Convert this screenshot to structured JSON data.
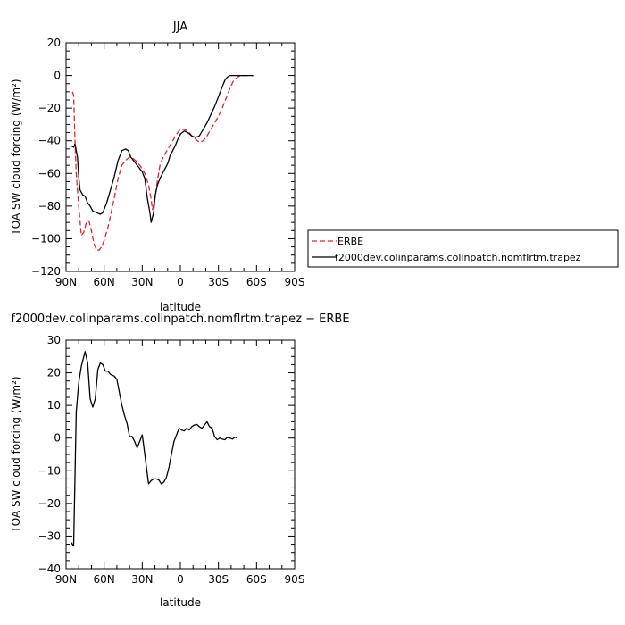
{
  "chart_data": [
    {
      "type": "line",
      "title": "JJA",
      "xlabel": "latitude",
      "ylabel": "TOA SW cloud forcing (W/m²)",
      "xlim": [
        -90,
        90
      ],
      "ylim": [
        -120,
        20
      ],
      "x_ticks": [
        {
          "value": -90,
          "label": "90N"
        },
        {
          "value": -60,
          "label": "60N"
        },
        {
          "value": -30,
          "label": "30N"
        },
        {
          "value": 0,
          "label": "0"
        },
        {
          "value": 30,
          "label": "30S"
        },
        {
          "value": 60,
          "label": "60S"
        },
        {
          "value": 90,
          "label": "90S"
        }
      ],
      "y_ticks": [
        20,
        0,
        -20,
        -40,
        -60,
        -80,
        -100,
        -120
      ],
      "legend_position": "right",
      "series": [
        {
          "name": "ERBE",
          "color": "#e8202a",
          "dash": "dashed",
          "points": [
            [
              -85,
              -10
            ],
            [
              -84,
              -12
            ],
            [
              -83,
              -40
            ],
            [
              -82,
              -60
            ],
            [
              -80,
              -80
            ],
            [
              -78,
              -98
            ],
            [
              -76,
              -96
            ],
            [
              -74,
              -90
            ],
            [
              -72,
              -89
            ],
            [
              -70,
              -95
            ],
            [
              -68,
              -103
            ],
            [
              -66,
              -107
            ],
            [
              -64,
              -107
            ],
            [
              -62,
              -105
            ],
            [
              -60,
              -101
            ],
            [
              -57,
              -93
            ],
            [
              -55,
              -86
            ],
            [
              -52,
              -75
            ],
            [
              -49,
              -63
            ],
            [
              -46,
              -55
            ],
            [
              -43,
              -52
            ],
            [
              -40,
              -50
            ],
            [
              -37,
              -51
            ],
            [
              -34,
              -53
            ],
            [
              -31,
              -56
            ],
            [
              -28,
              -60
            ],
            [
              -25,
              -67
            ],
            [
              -23,
              -76
            ],
            [
              -22,
              -82
            ],
            [
              -20,
              -76
            ],
            [
              -18,
              -64
            ],
            [
              -16,
              -55
            ],
            [
              -14,
              -51
            ],
            [
              -12,
              -48
            ],
            [
              -9,
              -44
            ],
            [
              -6,
              -40
            ],
            [
              -3,
              -36
            ],
            [
              0,
              -33
            ],
            [
              3,
              -33
            ],
            [
              6,
              -34
            ],
            [
              9,
              -37
            ],
            [
              12,
              -39
            ],
            [
              15,
              -41
            ],
            [
              18,
              -40
            ],
            [
              21,
              -37
            ],
            [
              24,
              -33
            ],
            [
              27,
              -29
            ],
            [
              30,
              -25
            ],
            [
              33,
              -20
            ],
            [
              36,
              -14
            ],
            [
              39,
              -8
            ],
            [
              42,
              -3
            ],
            [
              45,
              -1
            ],
            [
              48,
              0
            ],
            [
              51,
              0
            ],
            [
              54,
              0
            ],
            [
              58,
              0
            ]
          ]
        },
        {
          "name": "f2000dev.colinparams.colinpatch.nomflrtm.trapez",
          "color": "#000000",
          "dash": "solid",
          "points": [
            [
              -86,
              -43
            ],
            [
              -84,
              -44
            ],
            [
              -83,
              -42
            ],
            [
              -81,
              -50
            ],
            [
              -80,
              -62
            ],
            [
              -79,
              -70
            ],
            [
              -77,
              -73
            ],
            [
              -75,
              -74
            ],
            [
              -73,
              -78
            ],
            [
              -71,
              -80
            ],
            [
              -69,
              -83
            ],
            [
              -66,
              -84
            ],
            [
              -63,
              -85
            ],
            [
              -61,
              -84
            ],
            [
              -58,
              -78
            ],
            [
              -55,
              -70
            ],
            [
              -52,
              -62
            ],
            [
              -49,
              -52
            ],
            [
              -46,
              -46
            ],
            [
              -43,
              -45
            ],
            [
              -41,
              -46
            ],
            [
              -39,
              -50
            ],
            [
              -36,
              -53
            ],
            [
              -33,
              -56
            ],
            [
              -30,
              -59
            ],
            [
              -28,
              -63
            ],
            [
              -26,
              -75
            ],
            [
              -24,
              -84
            ],
            [
              -23,
              -90
            ],
            [
              -21,
              -84
            ],
            [
              -20,
              -74
            ],
            [
              -18,
              -67
            ],
            [
              -16,
              -63
            ],
            [
              -14,
              -60
            ],
            [
              -12,
              -57
            ],
            [
              -10,
              -54
            ],
            [
              -8,
              -49
            ],
            [
              -6,
              -46
            ],
            [
              -4,
              -43
            ],
            [
              -2,
              -39
            ],
            [
              0,
              -36
            ],
            [
              3,
              -34
            ],
            [
              6,
              -35
            ],
            [
              9,
              -37
            ],
            [
              12,
              -38
            ],
            [
              15,
              -37
            ],
            [
              18,
              -33
            ],
            [
              21,
              -29
            ],
            [
              24,
              -24
            ],
            [
              27,
              -19
            ],
            [
              30,
              -13
            ],
            [
              33,
              -7
            ],
            [
              35,
              -3
            ],
            [
              37,
              -1
            ],
            [
              39,
              0
            ],
            [
              42,
              0
            ],
            [
              45,
              0
            ],
            [
              50,
              0
            ],
            [
              57,
              0
            ]
          ]
        }
      ]
    },
    {
      "type": "line",
      "title": "f2000dev.colinparams.colinpatch.nomflrtm.trapez − ERBE",
      "xlabel": "latitude",
      "ylabel": "TOA SW cloud forcing (W/m²)",
      "xlim": [
        -90,
        90
      ],
      "ylim": [
        -40,
        30
      ],
      "x_ticks": [
        {
          "value": -90,
          "label": "90N"
        },
        {
          "value": -60,
          "label": "60N"
        },
        {
          "value": -30,
          "label": "30N"
        },
        {
          "value": 0,
          "label": "0"
        },
        {
          "value": 30,
          "label": "30S"
        },
        {
          "value": 60,
          "label": "60S"
        },
        {
          "value": 90,
          "label": "90S"
        }
      ],
      "y_ticks": [
        30,
        20,
        10,
        0,
        -10,
        -20,
        -30,
        -40
      ],
      "series": [
        {
          "color": "#000000",
          "dash": "solid",
          "points": [
            [
              -86,
              -32
            ],
            [
              -84,
              -33
            ],
            [
              -82,
              8
            ],
            [
              -80,
              17
            ],
            [
              -78,
              22
            ],
            [
              -75,
              26.5
            ],
            [
              -73,
              23
            ],
            [
              -71,
              12
            ],
            [
              -69,
              9.5
            ],
            [
              -67,
              12
            ],
            [
              -65,
              21
            ],
            [
              -63,
              23
            ],
            [
              -61,
              22.5
            ],
            [
              -59,
              20.5
            ],
            [
              -57,
              20.5
            ],
            [
              -55,
              19.5
            ],
            [
              -52,
              19
            ],
            [
              -50,
              18
            ],
            [
              -48,
              14
            ],
            [
              -46,
              10
            ],
            [
              -44,
              7
            ],
            [
              -42,
              4.5
            ],
            [
              -40,
              0.5
            ],
            [
              -38,
              0.5
            ],
            [
              -36,
              -1
            ],
            [
              -34,
              -3
            ],
            [
              -32,
              -1
            ],
            [
              -30,
              1
            ],
            [
              -29,
              -2
            ],
            [
              -27,
              -8
            ],
            [
              -25,
              -14
            ],
            [
              -23,
              -13
            ],
            [
              -21,
              -12.5
            ],
            [
              -19,
              -12.5
            ],
            [
              -17,
              -12.8
            ],
            [
              -15,
              -14
            ],
            [
              -13,
              -13.5
            ],
            [
              -11,
              -12
            ],
            [
              -9,
              -9
            ],
            [
              -7,
              -5
            ],
            [
              -5,
              -1
            ],
            [
              -3,
              1
            ],
            [
              -1,
              3
            ],
            [
              1,
              2.5
            ],
            [
              3,
              2.2
            ],
            [
              5,
              3
            ],
            [
              7,
              2.5
            ],
            [
              9,
              3.5
            ],
            [
              11,
              4
            ],
            [
              13,
              4.2
            ],
            [
              15,
              3.5
            ],
            [
              17,
              3
            ],
            [
              19,
              4
            ],
            [
              21,
              5
            ],
            [
              23,
              3.5
            ],
            [
              25,
              3
            ],
            [
              27,
              0.5
            ],
            [
              29,
              -0.5
            ],
            [
              31,
              0
            ],
            [
              33,
              -0.3
            ],
            [
              35,
              -0.5
            ],
            [
              37,
              0.2
            ],
            [
              39,
              0
            ],
            [
              41,
              -0.3
            ],
            [
              43,
              0.3
            ],
            [
              45,
              0
            ]
          ]
        }
      ]
    }
  ]
}
